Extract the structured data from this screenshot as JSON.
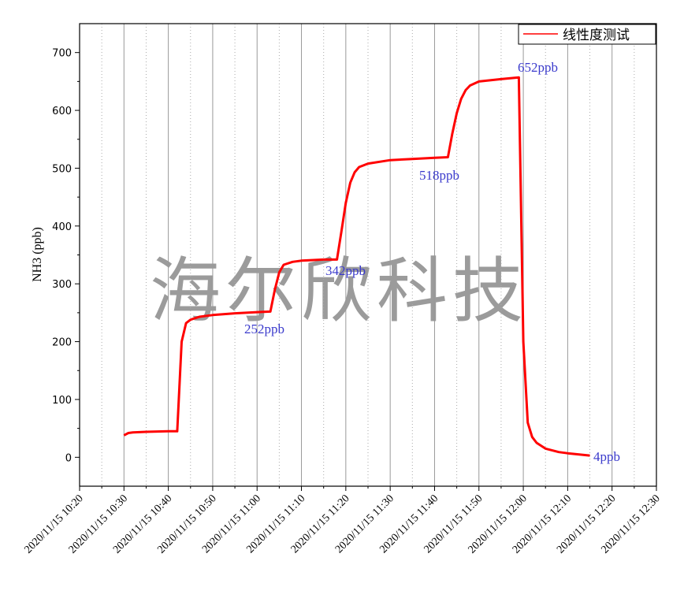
{
  "chart_data": {
    "type": "line",
    "watermark": "海尔欣科技",
    "y_label": "NH3 (ppb)",
    "xlim": [
      "2020/11/15 10:20",
      "2020/11/15 12:30"
    ],
    "xticks": [
      "2020/11/15 10:20",
      "2020/11/15 10:30",
      "2020/11/15 10:40",
      "2020/11/15 10:50",
      "2020/11/15 11:00",
      "2020/11/15 11:10",
      "2020/11/15 11:20",
      "2020/11/15 11:30",
      "2020/11/15 11:40",
      "2020/11/15 11:50",
      "2020/11/15 12:00",
      "2020/11/15 12:10",
      "2020/11/15 12:20",
      "2020/11/15 12:30"
    ],
    "ylim": [
      -50,
      750
    ],
    "yticks": [
      0,
      100,
      200,
      300,
      400,
      500,
      600,
      700
    ],
    "grid": "x",
    "legend": "top-right",
    "series": [
      {
        "name": "线性度测试",
        "color": "#ff0000",
        "x": [
          "2020/11/15 10:30",
          "2020/11/15 10:31",
          "2020/11/15 10:32",
          "2020/11/15 10:35",
          "2020/11/15 10:40",
          "2020/11/15 10:42",
          "2020/11/15 10:43",
          "2020/11/15 10:44",
          "2020/11/15 10:45",
          "2020/11/15 10:47",
          "2020/11/15 10:50",
          "2020/11/15 10:55",
          "2020/11/15 11:00",
          "2020/11/15 11:03",
          "2020/11/15 11:04",
          "2020/11/15 11:05",
          "2020/11/15 11:06",
          "2020/11/15 11:08",
          "2020/11/15 11:10",
          "2020/11/15 11:15",
          "2020/11/15 11:18",
          "2020/11/15 11:19",
          "2020/11/15 11:20",
          "2020/11/15 11:21",
          "2020/11/15 11:22",
          "2020/11/15 11:23",
          "2020/11/15 11:25",
          "2020/11/15 11:30",
          "2020/11/15 11:35",
          "2020/11/15 11:40",
          "2020/11/15 11:43",
          "2020/11/15 11:44",
          "2020/11/15 11:45",
          "2020/11/15 11:46",
          "2020/11/15 11:47",
          "2020/11/15 11:48",
          "2020/11/15 11:50",
          "2020/11/15 11:55",
          "2020/11/15 11:59",
          "2020/11/15 12:00",
          "2020/11/15 12:01",
          "2020/11/15 12:02",
          "2020/11/15 12:03",
          "2020/11/15 12:05",
          "2020/11/15 12:08",
          "2020/11/15 12:10",
          "2020/11/15 12:15"
        ],
        "values": [
          38,
          42,
          43,
          44,
          45,
          45,
          200,
          232,
          238,
          243,
          246,
          249,
          251,
          252,
          290,
          320,
          333,
          338,
          340,
          342,
          342,
          390,
          440,
          475,
          493,
          502,
          508,
          514,
          516,
          518,
          519,
          560,
          595,
          620,
          635,
          643,
          650,
          654,
          657,
          200,
          60,
          35,
          25,
          15,
          9,
          7,
          3
        ]
      }
    ],
    "annotations": [
      "252ppb",
      "342ppb",
      "518ppb",
      "652ppb",
      "4ppb"
    ]
  }
}
